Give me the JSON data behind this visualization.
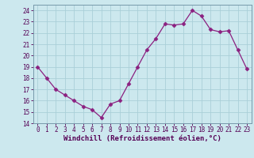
{
  "x": [
    0,
    1,
    2,
    3,
    4,
    5,
    6,
    7,
    8,
    9,
    10,
    11,
    12,
    13,
    14,
    15,
    16,
    17,
    18,
    19,
    20,
    21,
    22,
    23
  ],
  "y": [
    19.0,
    18.0,
    17.0,
    16.5,
    16.0,
    15.5,
    15.2,
    14.5,
    15.7,
    16.0,
    17.5,
    19.0,
    20.5,
    21.5,
    22.8,
    22.7,
    22.8,
    24.0,
    23.5,
    22.3,
    22.1,
    22.2,
    20.5,
    18.8
  ],
  "line_color": "#8b2080",
  "marker": "D",
  "marker_size": 2.5,
  "bg_color": "#cce8ee",
  "grid_color": "#aacfd8",
  "xlabel": "Windchill (Refroidissement éolien,°C)",
  "xlim": [
    -0.5,
    23.5
  ],
  "ylim": [
    14,
    24.5
  ],
  "yticks": [
    14,
    15,
    16,
    17,
    18,
    19,
    20,
    21,
    22,
    23,
    24
  ],
  "xticks": [
    0,
    1,
    2,
    3,
    4,
    5,
    6,
    7,
    8,
    9,
    10,
    11,
    12,
    13,
    14,
    15,
    16,
    17,
    18,
    19,
    20,
    21,
    22,
    23
  ],
  "tick_label_size": 5.5,
  "xlabel_size": 6.5,
  "spine_color": "#7799aa"
}
